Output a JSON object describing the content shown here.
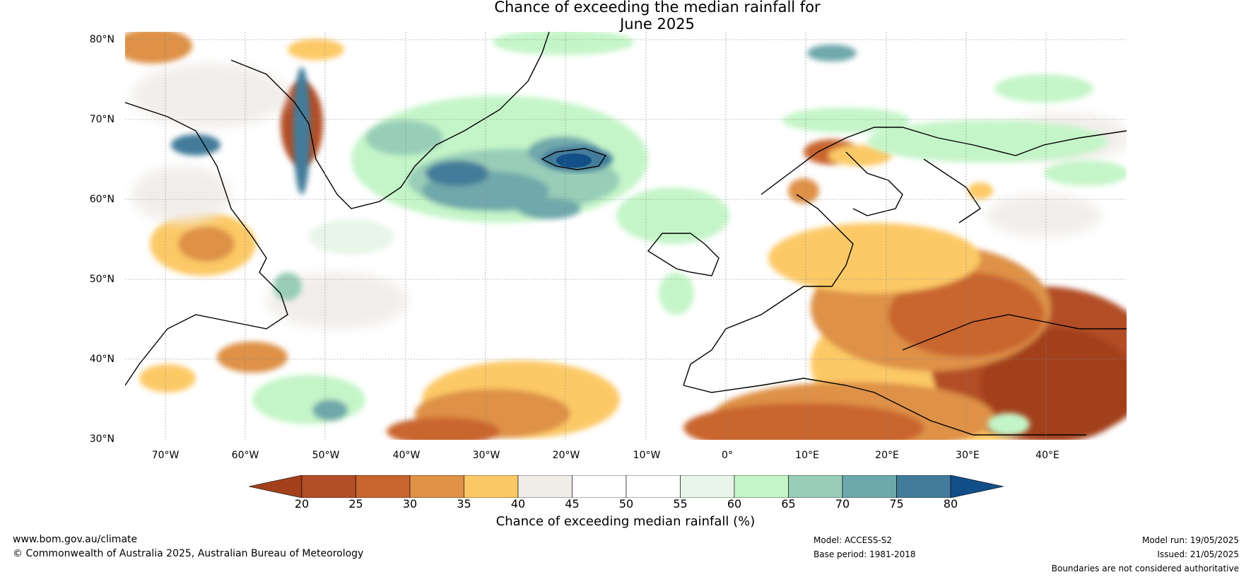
{
  "title": {
    "line1": "Chance of exceeding the median rainfall for",
    "line2": "June 2025"
  },
  "map": {
    "latitude_labels": [
      "80°N",
      "70°N",
      "60°N",
      "50°N",
      "40°N",
      "30°N"
    ],
    "longitude_labels": [
      "70°W",
      "60°W",
      "50°W",
      "40°W",
      "30°W",
      "20°W",
      "10°W",
      "0°",
      "10°E",
      "20°E",
      "30°E",
      "40°E"
    ],
    "extent": {
      "lon_min": -75,
      "lon_max": 50,
      "lat_min": 30,
      "lat_max": 81
    }
  },
  "legend": {
    "title": "Chance of exceeding median rainfall (%)",
    "tick_labels": [
      "20",
      "25",
      "30",
      "35",
      "40",
      "45",
      "50",
      "55",
      "60",
      "65",
      "70",
      "75",
      "80"
    ],
    "colors": [
      "#a3401b",
      "#b24e27",
      "#c9652f",
      "#de9147",
      "#fcc966",
      "#f0ece8",
      "#ffffff",
      "#ffffff",
      "#e8f5e8",
      "#c4f5c8",
      "#98cdb8",
      "#6fa8ab",
      "#437c9a",
      "#124f88"
    ]
  },
  "footer": {
    "website": "www.bom.gov.au/climate",
    "copyright": "© Commonwealth of Australia 2025, Australian Bureau of Meteorology",
    "model": "Model: ACCESS-S2",
    "base_period": "Base period: 1981-2018",
    "model_run": "Model run: 19/05/2025",
    "issued": "Issued: 21/05/2025",
    "boundaries_note": "Boundaries are not considered authoritative"
  }
}
